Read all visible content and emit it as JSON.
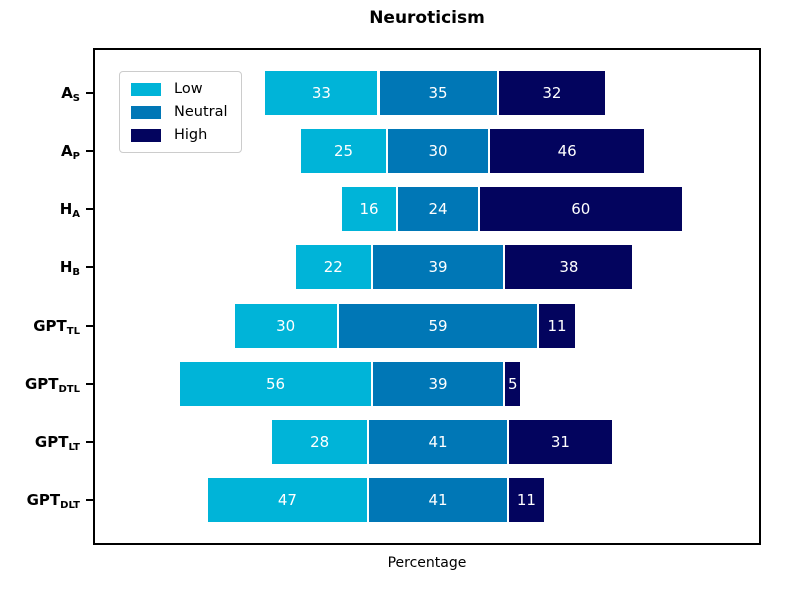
{
  "title": "Neuroticism",
  "xlabel": "Percentage",
  "legend": {
    "position": "upper left",
    "items": [
      {
        "label": "Low",
        "color": "#00b4d8"
      },
      {
        "label": "Neutral",
        "color": "#0077b6"
      },
      {
        "label": "High",
        "color": "#03045e"
      }
    ]
  },
  "chart_data": {
    "type": "bar",
    "orientation": "horizontal",
    "stacked": true,
    "diverging": true,
    "center_alignment": "midpoint-of-neutral",
    "title": "Neuroticism",
    "xlabel": "Percentage",
    "x_ticks_visible": false,
    "grid": false,
    "legend_position": "upper left",
    "value_unit": "percent",
    "categories": [
      {
        "key": "as",
        "main": "A",
        "sub": "S"
      },
      {
        "key": "ap",
        "main": "A",
        "sub": "P"
      },
      {
        "key": "ha",
        "main": "H",
        "sub": "A"
      },
      {
        "key": "hb",
        "main": "H",
        "sub": "B"
      },
      {
        "key": "gpttl",
        "main": "GPT",
        "sub": "TL"
      },
      {
        "key": "gptdtl",
        "main": "GPT",
        "sub": "DTL"
      },
      {
        "key": "gptlt",
        "main": "GPT",
        "sub": "LT"
      },
      {
        "key": "gptdlt",
        "main": "GPT",
        "sub": "DLT"
      }
    ],
    "series": [
      {
        "name": "Low",
        "color": "#00b4d8",
        "values": [
          33,
          25,
          16,
          22,
          30,
          56,
          28,
          47
        ]
      },
      {
        "name": "Neutral",
        "color": "#0077b6",
        "values": [
          35,
          30,
          24,
          39,
          59,
          39,
          41,
          41
        ]
      },
      {
        "name": "High",
        "color": "#03045e",
        "values": [
          32,
          46,
          60,
          38,
          11,
          5,
          31,
          11
        ]
      }
    ]
  }
}
